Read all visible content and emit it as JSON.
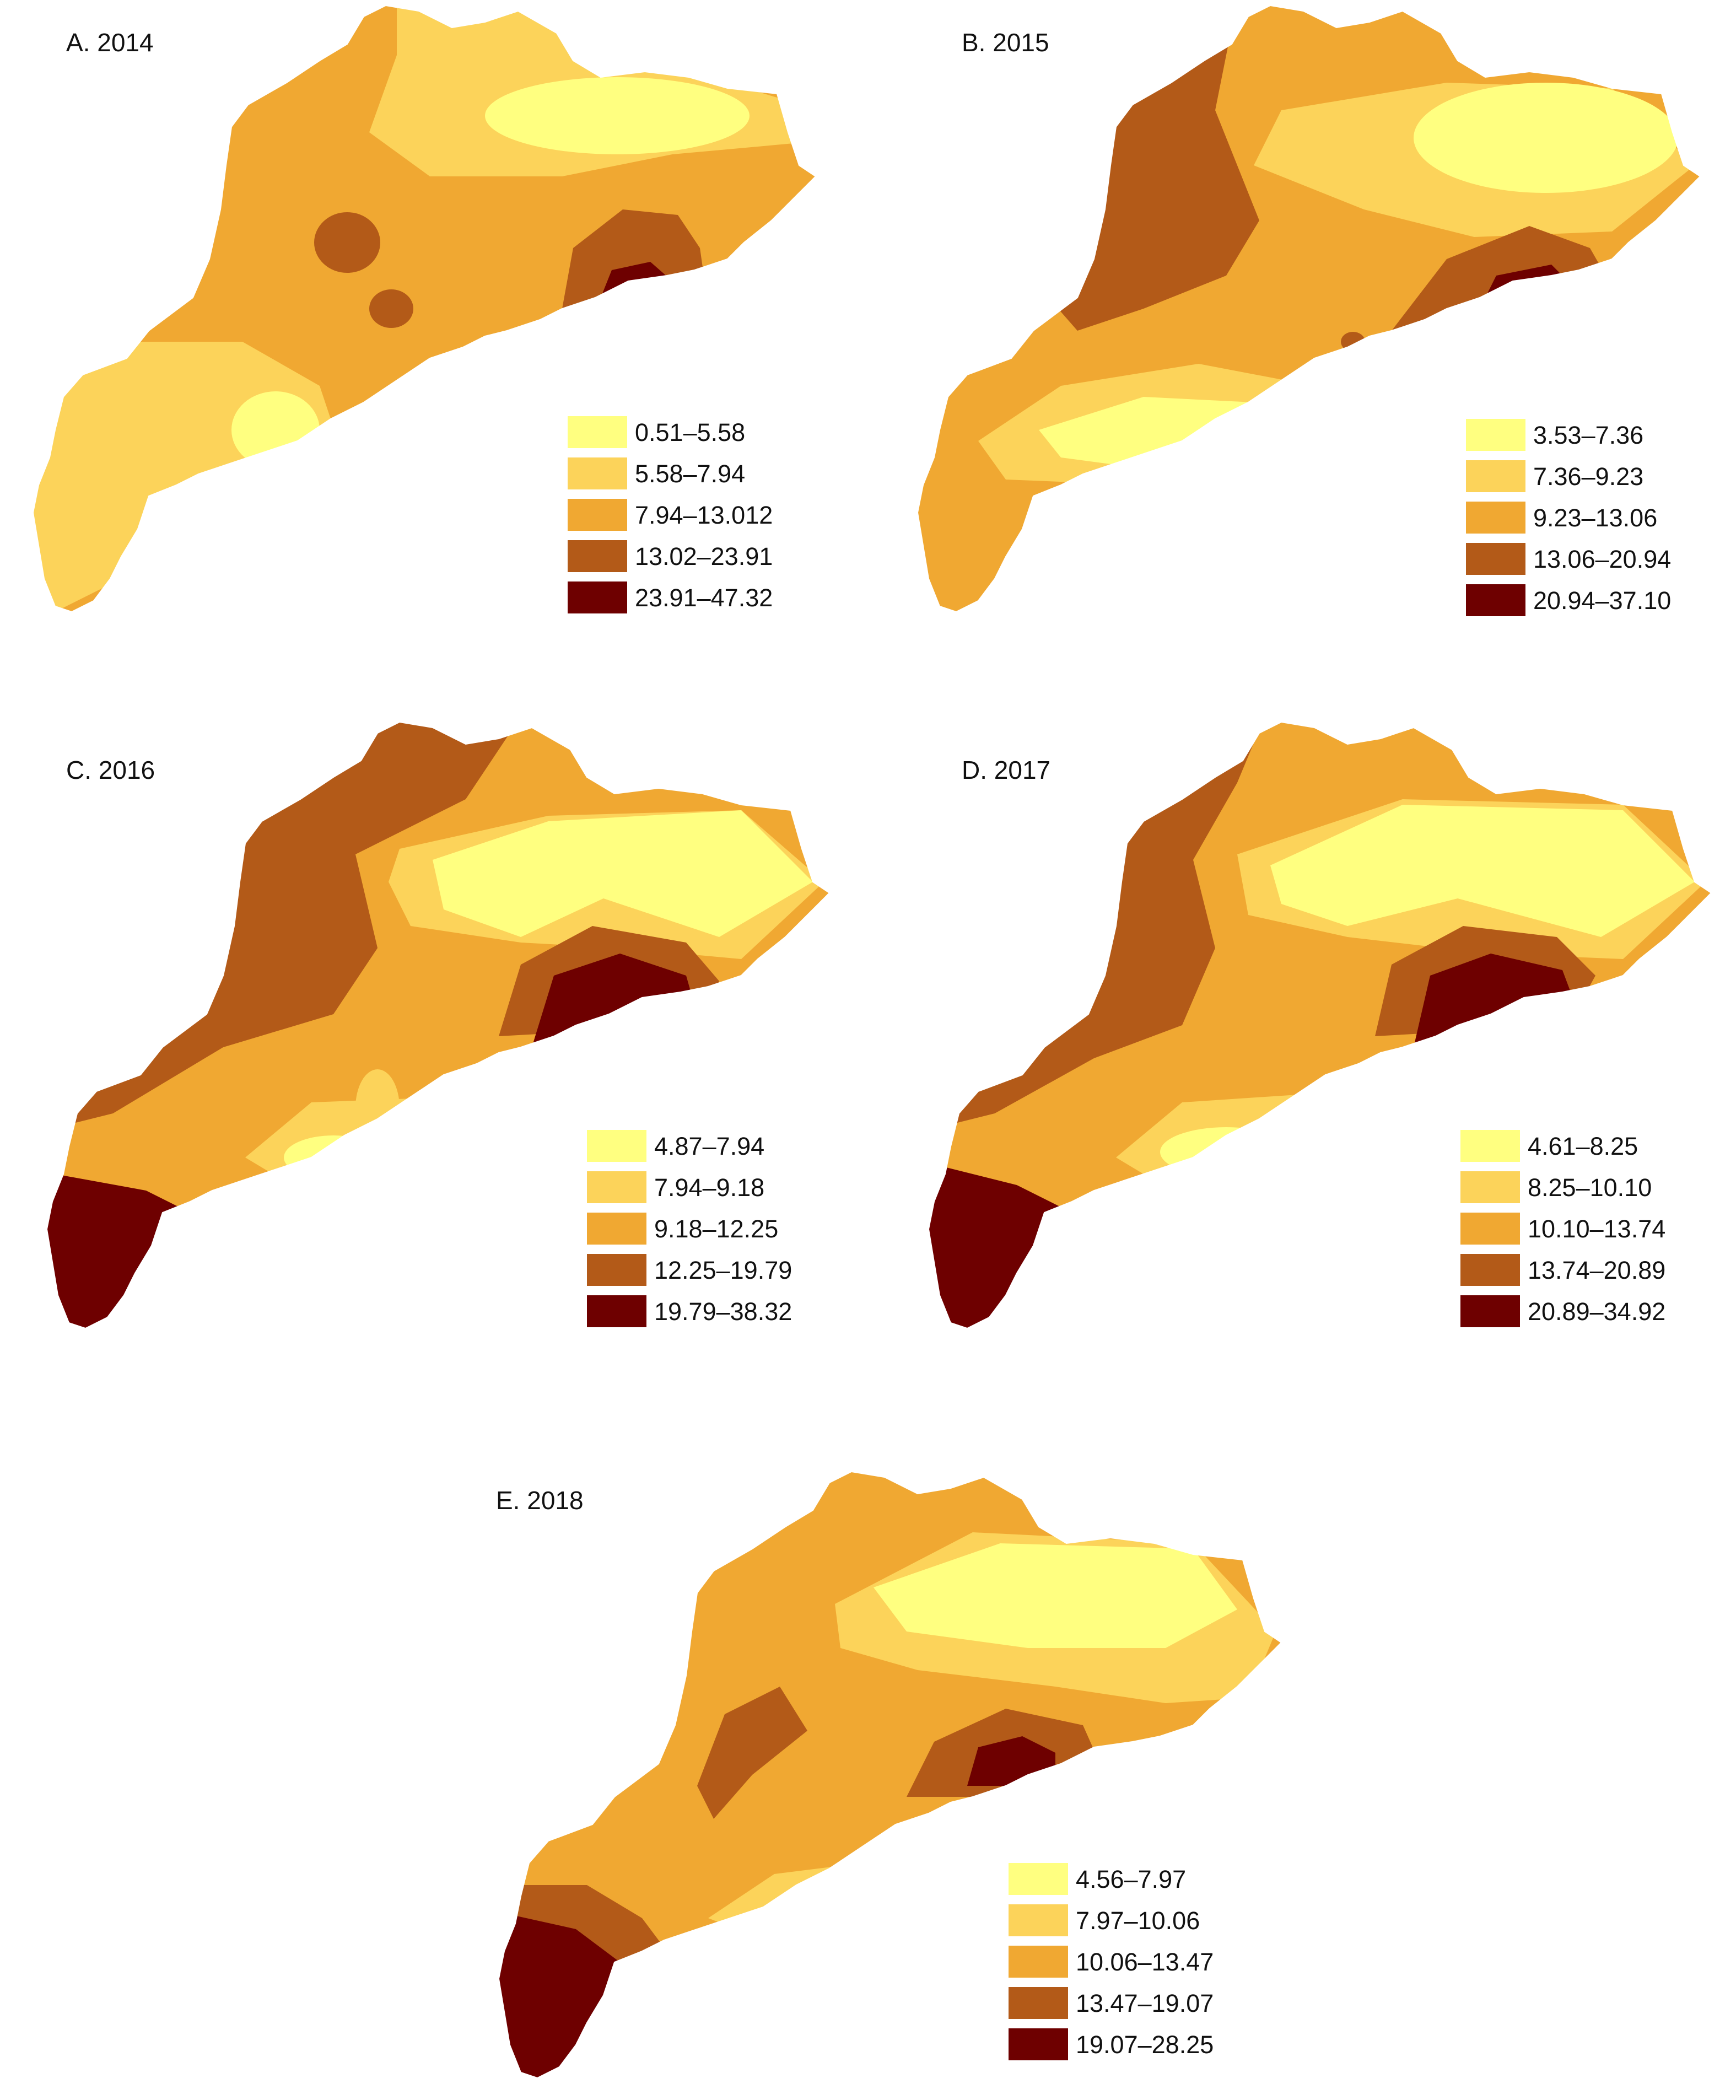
{
  "palette": {
    "c1": "#ffff80",
    "c2": "#fcd35a",
    "c3": "#f0a832",
    "c4": "#b35a18",
    "c5": "#6e0000"
  },
  "panels": [
    {
      "title": "A. 2014",
      "legend": [
        "0.51–5.58",
        "5.58–7.94",
        "7.94–13.012",
        "13.02–23.91",
        "23.91–47.32"
      ]
    },
    {
      "title": "B. 2015",
      "legend": [
        "3.53–7.36",
        "7.36–9.23",
        "9.23–13.06",
        "13.06–20.94",
        "20.94–37.10"
      ]
    },
    {
      "title": "C. 2016",
      "legend": [
        "4.87–7.94",
        "7.94–9.18",
        "9.18–12.25",
        "12.25–19.79",
        "19.79–38.32"
      ]
    },
    {
      "title": "D. 2017",
      "legend": [
        "4.61–8.25",
        "8.25–10.10",
        "10.10–13.74",
        "13.74–20.89",
        "20.89–34.92"
      ]
    },
    {
      "title": "E. 2018",
      "legend": [
        "4.56–7.97",
        "7.97–10.06",
        "10.06–13.47",
        "13.47–19.07",
        "19.07–28.25"
      ]
    }
  ]
}
